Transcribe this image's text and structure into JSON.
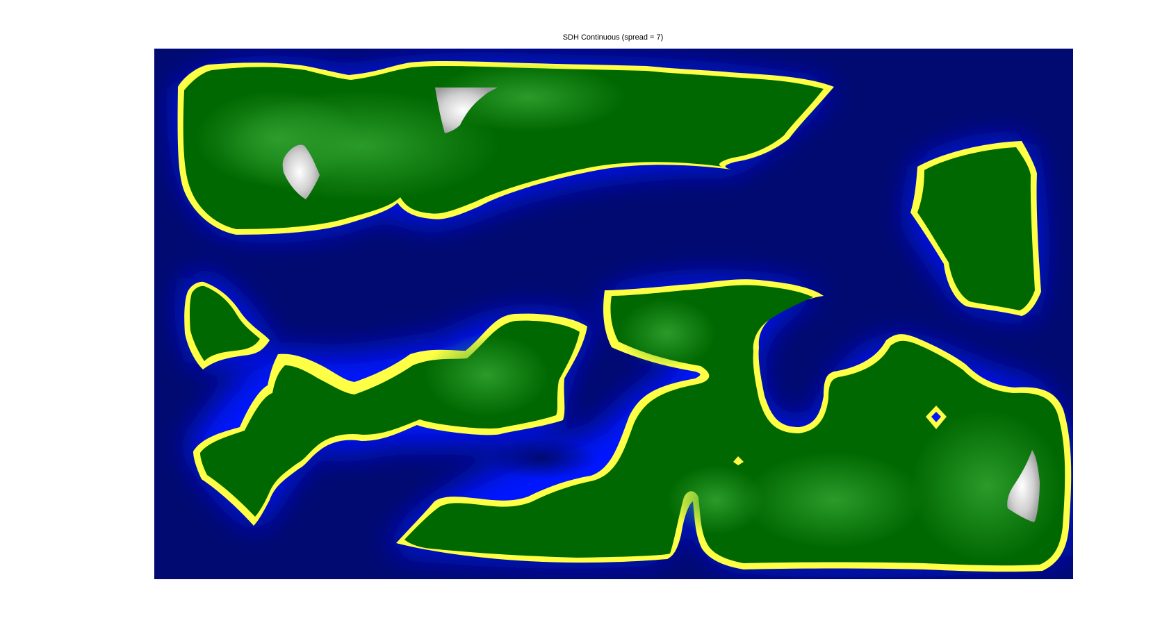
{
  "figure": {
    "title": "SDH Continuous (spread = 7)"
  },
  "colors": {
    "water_deep": "#000a70",
    "water_shallow": "#0016ff",
    "beach": "#ffff46",
    "land_low": "#006800",
    "land_mid": "#0a8a0a",
    "land_peak": "#d8d8d8"
  }
}
